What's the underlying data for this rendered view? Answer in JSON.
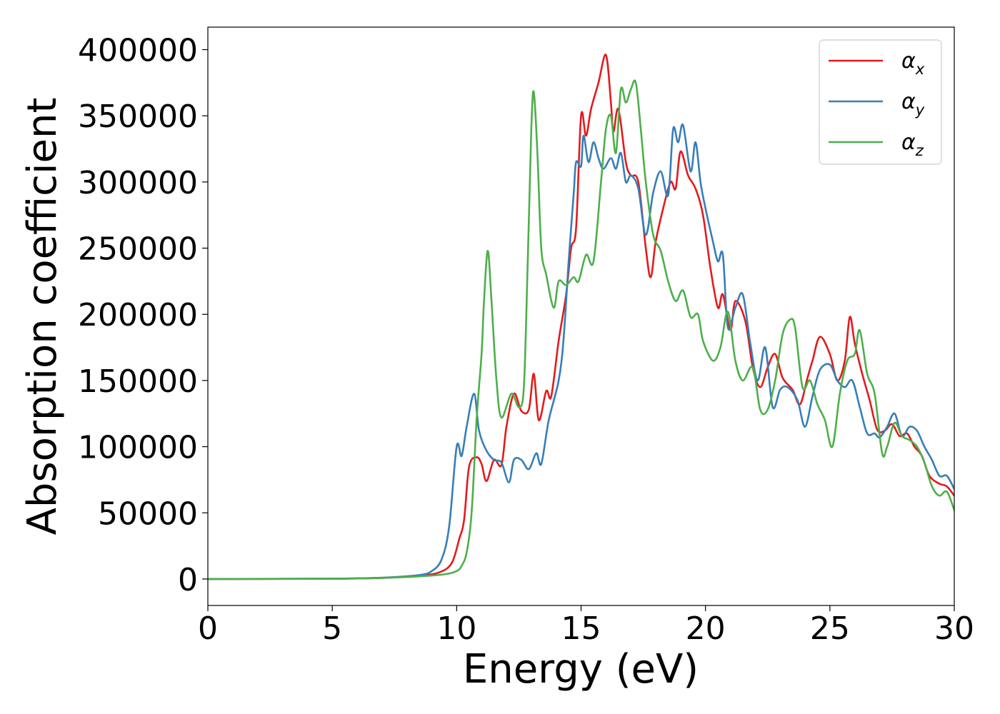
{
  "chart_data": {
    "type": "line",
    "title": "",
    "xlabel": "Energy (eV)",
    "ylabel": "Absorption coefficient",
    "xlim": [
      0,
      30
    ],
    "ylim": [
      -20000,
      417000
    ],
    "xticks": [
      0,
      5,
      10,
      15,
      20,
      25,
      30
    ],
    "xtick_labels": [
      "0",
      "5",
      "10",
      "15",
      "20",
      "25",
      "30"
    ],
    "yticks": [
      0,
      50000,
      100000,
      150000,
      200000,
      250000,
      300000,
      350000,
      400000
    ],
    "ytick_labels": [
      "0",
      "50000",
      "100000",
      "150000",
      "200000",
      "250000",
      "300000",
      "350000",
      "400000"
    ],
    "grid": false,
    "legend_position": "top-right",
    "series": [
      {
        "name": "α_x",
        "symbol": "α",
        "subscript": "x",
        "color": "#e41a1c",
        "points": [
          [
            0,
            0
          ],
          [
            5,
            200
          ],
          [
            7,
            800
          ],
          [
            8.5,
            2500
          ],
          [
            9.3,
            5000
          ],
          [
            9.8,
            12000
          ],
          [
            10.1,
            30000
          ],
          [
            10.3,
            45000
          ],
          [
            10.5,
            85000
          ],
          [
            10.8,
            92000
          ],
          [
            11,
            87000
          ],
          [
            11.2,
            74000
          ],
          [
            11.5,
            90000
          ],
          [
            11.8,
            86000
          ],
          [
            12,
            115000
          ],
          [
            12.3,
            140000
          ],
          [
            12.6,
            127000
          ],
          [
            12.9,
            128000
          ],
          [
            13.1,
            155000
          ],
          [
            13.3,
            120000
          ],
          [
            13.6,
            142000
          ],
          [
            13.8,
            138000
          ],
          [
            14.1,
            180000
          ],
          [
            14.4,
            215000
          ],
          [
            14.6,
            250000
          ],
          [
            14.8,
            265000
          ],
          [
            15,
            350000
          ],
          [
            15.2,
            335000
          ],
          [
            15.4,
            355000
          ],
          [
            15.7,
            375000
          ],
          [
            16,
            396000
          ],
          [
            16.2,
            360000
          ],
          [
            16.3,
            338000
          ],
          [
            16.5,
            355000
          ],
          [
            16.8,
            315000
          ],
          [
            17,
            305000
          ],
          [
            17.3,
            300000
          ],
          [
            17.6,
            250000
          ],
          [
            17.8,
            228000
          ],
          [
            18,
            255000
          ],
          [
            18.3,
            280000
          ],
          [
            18.6,
            300000
          ],
          [
            18.8,
            295000
          ],
          [
            19,
            323000
          ],
          [
            19.3,
            305000
          ],
          [
            19.6,
            295000
          ],
          [
            19.9,
            275000
          ],
          [
            20.2,
            235000
          ],
          [
            20.5,
            205000
          ],
          [
            20.7,
            215000
          ],
          [
            21,
            188000
          ],
          [
            21.2,
            210000
          ],
          [
            21.6,
            195000
          ],
          [
            21.9,
            160000
          ],
          [
            22.2,
            145000
          ],
          [
            22.5,
            160000
          ],
          [
            22.8,
            170000
          ],
          [
            23.1,
            152000
          ],
          [
            23.5,
            143000
          ],
          [
            23.8,
            132000
          ],
          [
            24.1,
            152000
          ],
          [
            24.3,
            165000
          ],
          [
            24.6,
            183000
          ],
          [
            25,
            170000
          ],
          [
            25.3,
            150000
          ],
          [
            25.6,
            165000
          ],
          [
            25.8,
            198000
          ],
          [
            26,
            178000
          ],
          [
            26.3,
            155000
          ],
          [
            26.6,
            135000
          ],
          [
            26.9,
            113000
          ],
          [
            27.2,
            112000
          ],
          [
            27.5,
            117000
          ],
          [
            27.8,
            108000
          ],
          [
            28.1,
            110000
          ],
          [
            28.4,
            100000
          ],
          [
            28.7,
            93000
          ],
          [
            29,
            78000
          ],
          [
            29.4,
            72000
          ],
          [
            29.7,
            70000
          ],
          [
            30,
            63000
          ]
        ]
      },
      {
        "name": "α_y",
        "symbol": "α",
        "subscript": "y",
        "color": "#377eb8",
        "points": [
          [
            0,
            0
          ],
          [
            5,
            300
          ],
          [
            7,
            1000
          ],
          [
            8.5,
            3000
          ],
          [
            9,
            6000
          ],
          [
            9.4,
            15000
          ],
          [
            9.7,
            40000
          ],
          [
            10,
            100000
          ],
          [
            10.2,
            93000
          ],
          [
            10.4,
            115000
          ],
          [
            10.7,
            140000
          ],
          [
            10.9,
            112000
          ],
          [
            11.2,
            97000
          ],
          [
            11.5,
            90000
          ],
          [
            11.8,
            88000
          ],
          [
            12.1,
            73000
          ],
          [
            12.3,
            90000
          ],
          [
            12.6,
            90000
          ],
          [
            12.9,
            83000
          ],
          [
            13.2,
            95000
          ],
          [
            13.4,
            87000
          ],
          [
            13.7,
            120000
          ],
          [
            14.1,
            150000
          ],
          [
            14.3,
            182000
          ],
          [
            14.5,
            240000
          ],
          [
            14.7,
            290000
          ],
          [
            14.8,
            315000
          ],
          [
            15,
            312000
          ],
          [
            15.1,
            335000
          ],
          [
            15.3,
            315000
          ],
          [
            15.5,
            330000
          ],
          [
            15.7,
            318000
          ],
          [
            15.9,
            310000
          ],
          [
            16.2,
            318000
          ],
          [
            16.4,
            310000
          ],
          [
            16.6,
            322000
          ],
          [
            16.8,
            300000
          ],
          [
            17,
            305000
          ],
          [
            17.3,
            295000
          ],
          [
            17.6,
            260000
          ],
          [
            17.9,
            292000
          ],
          [
            18.2,
            308000
          ],
          [
            18.5,
            290000
          ],
          [
            18.7,
            340000
          ],
          [
            18.9,
            330000
          ],
          [
            19.1,
            343000
          ],
          [
            19.4,
            308000
          ],
          [
            19.6,
            330000
          ],
          [
            19.8,
            300000
          ],
          [
            20,
            280000
          ],
          [
            20.3,
            255000
          ],
          [
            20.5,
            240000
          ],
          [
            20.7,
            245000
          ],
          [
            20.9,
            190000
          ],
          [
            21.2,
            205000
          ],
          [
            21.5,
            215000
          ],
          [
            21.8,
            178000
          ],
          [
            22.1,
            150000
          ],
          [
            22.4,
            175000
          ],
          [
            22.7,
            130000
          ],
          [
            23,
            143000
          ],
          [
            23.3,
            145000
          ],
          [
            23.7,
            135000
          ],
          [
            24,
            115000
          ],
          [
            24.3,
            138000
          ],
          [
            24.6,
            158000
          ],
          [
            25,
            162000
          ],
          [
            25.3,
            150000
          ],
          [
            25.6,
            145000
          ],
          [
            25.9,
            150000
          ],
          [
            26.2,
            130000
          ],
          [
            26.5,
            110000
          ],
          [
            26.8,
            110000
          ],
          [
            27,
            107000
          ],
          [
            27.3,
            115000
          ],
          [
            27.6,
            125000
          ],
          [
            27.9,
            108000
          ],
          [
            28.2,
            115000
          ],
          [
            28.5,
            112000
          ],
          [
            28.8,
            100000
          ],
          [
            29.1,
            90000
          ],
          [
            29.4,
            78000
          ],
          [
            29.7,
            78000
          ],
          [
            30,
            68000
          ]
        ]
      },
      {
        "name": "α_z",
        "symbol": "α",
        "subscript": "z",
        "color": "#4daf4a",
        "points": [
          [
            0,
            0
          ],
          [
            5,
            200
          ],
          [
            7,
            800
          ],
          [
            8.5,
            2000
          ],
          [
            9.5,
            3500
          ],
          [
            10,
            6000
          ],
          [
            10.2,
            10000
          ],
          [
            10.4,
            20000
          ],
          [
            10.6,
            50000
          ],
          [
            10.8,
            120000
          ],
          [
            11,
            170000
          ],
          [
            11.1,
            210000
          ],
          [
            11.25,
            248000
          ],
          [
            11.4,
            210000
          ],
          [
            11.6,
            150000
          ],
          [
            11.8,
            122000
          ],
          [
            12.2,
            140000
          ],
          [
            12.5,
            130000
          ],
          [
            12.7,
            145000
          ],
          [
            12.85,
            235000
          ],
          [
            13,
            340000
          ],
          [
            13.1,
            368000
          ],
          [
            13.25,
            320000
          ],
          [
            13.4,
            250000
          ],
          [
            13.6,
            230000
          ],
          [
            13.9,
            205000
          ],
          [
            14.1,
            225000
          ],
          [
            14.4,
            222000
          ],
          [
            14.7,
            228000
          ],
          [
            14.9,
            225000
          ],
          [
            15.2,
            245000
          ],
          [
            15.5,
            240000
          ],
          [
            15.8,
            300000
          ],
          [
            16,
            340000
          ],
          [
            16.2,
            350000
          ],
          [
            16.4,
            322000
          ],
          [
            16.6,
            370000
          ],
          [
            16.8,
            360000
          ],
          [
            17,
            370000
          ],
          [
            17.2,
            375000
          ],
          [
            17.4,
            340000
          ],
          [
            17.6,
            300000
          ],
          [
            17.9,
            260000
          ],
          [
            18.2,
            248000
          ],
          [
            18.5,
            225000
          ],
          [
            18.8,
            210000
          ],
          [
            19.1,
            218000
          ],
          [
            19.4,
            198000
          ],
          [
            19.7,
            200000
          ],
          [
            19.9,
            180000
          ],
          [
            20.3,
            165000
          ],
          [
            20.6,
            175000
          ],
          [
            20.9,
            202000
          ],
          [
            21.2,
            165000
          ],
          [
            21.5,
            150000
          ],
          [
            21.9,
            160000
          ],
          [
            22.2,
            128000
          ],
          [
            22.5,
            128000
          ],
          [
            22.8,
            150000
          ],
          [
            23.1,
            185000
          ],
          [
            23.4,
            196000
          ],
          [
            23.6,
            190000
          ],
          [
            23.9,
            145000
          ],
          [
            24.2,
            150000
          ],
          [
            24.5,
            132000
          ],
          [
            24.8,
            120000
          ],
          [
            25.1,
            100000
          ],
          [
            25.4,
            140000
          ],
          [
            25.7,
            165000
          ],
          [
            26,
            170000
          ],
          [
            26.2,
            188000
          ],
          [
            26.5,
            155000
          ],
          [
            26.8,
            140000
          ],
          [
            27.1,
            95000
          ],
          [
            27.3,
            100000
          ],
          [
            27.6,
            118000
          ],
          [
            27.9,
            108000
          ],
          [
            28.2,
            105000
          ],
          [
            28.5,
            100000
          ],
          [
            28.8,
            88000
          ],
          [
            29.1,
            70000
          ],
          [
            29.4,
            63000
          ],
          [
            29.7,
            66000
          ],
          [
            30,
            52000
          ]
        ]
      }
    ]
  }
}
